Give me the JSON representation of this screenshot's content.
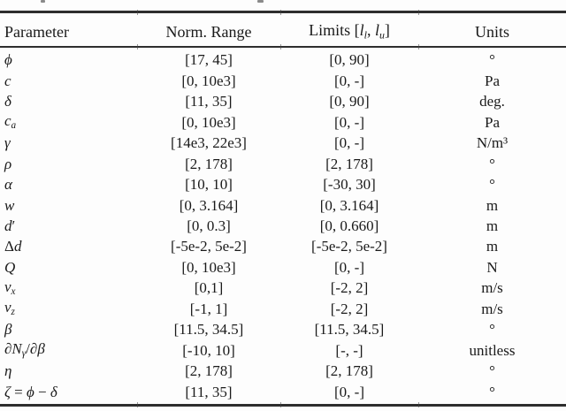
{
  "palette": {
    "background": "#fdfdfd",
    "text": "#1a1a1a",
    "rule": "#2e2e2e"
  },
  "header": {
    "parameter": "Parameter",
    "norm_range": "Norm. Range",
    "limits_segments": [
      {
        "t": "Limits ["
      },
      {
        "t": "l",
        "i": true
      },
      {
        "t": "l",
        "i": true,
        "sub": true
      },
      {
        "t": ", "
      },
      {
        "t": "l",
        "i": true
      },
      {
        "t": "u",
        "i": true,
        "sub": true
      },
      {
        "t": "]"
      }
    ],
    "units": "Units"
  },
  "rows": [
    {
      "param": [
        {
          "t": "ϕ",
          "i": true
        }
      ],
      "norm": "[17, 45]",
      "limits": "[0, 90]",
      "units": "°"
    },
    {
      "param": [
        {
          "t": "c",
          "i": true
        }
      ],
      "norm": "[0, 10e3]",
      "limits": "[0, -]",
      "units": "Pa"
    },
    {
      "param": [
        {
          "t": "δ",
          "i": true
        }
      ],
      "norm": "[11, 35]",
      "limits": "[0, 90]",
      "units": "deg."
    },
    {
      "param": [
        {
          "t": "c",
          "i": true
        },
        {
          "t": "a",
          "i": true,
          "sub": true
        }
      ],
      "norm": "[0, 10e3]",
      "limits": "[0, -]",
      "units": "Pa"
    },
    {
      "param": [
        {
          "t": "γ",
          "i": true
        }
      ],
      "norm": "[14e3, 22e3]",
      "limits": "[0, -]",
      "units": "N/m³"
    },
    {
      "param": [
        {
          "t": "ρ",
          "i": true
        }
      ],
      "norm": "[2, 178]",
      "limits": "[2, 178]",
      "units": "°"
    },
    {
      "param": [
        {
          "t": "α",
          "i": true
        }
      ],
      "norm": "[10, 10]",
      "limits": "[-30, 30]",
      "units": "°"
    },
    {
      "param": [
        {
          "t": "w",
          "i": true
        }
      ],
      "norm": "[0, 3.164]",
      "limits": "[0, 3.164]",
      "units": "m"
    },
    {
      "param": [
        {
          "t": "d",
          "i": true
        },
        {
          "t": "′"
        }
      ],
      "norm": "[0, 0.3]",
      "limits": "[0, 0.660]",
      "units": "m"
    },
    {
      "param": [
        {
          "t": "Δ"
        },
        {
          "t": "d",
          "i": true
        }
      ],
      "norm": "[-5e-2, 5e-2]",
      "limits": "[-5e-2, 5e-2]",
      "units": "m"
    },
    {
      "param": [
        {
          "t": "Q",
          "i": true
        }
      ],
      "norm": "[0, 10e3]",
      "limits": "[0, -]",
      "units": "N"
    },
    {
      "param": [
        {
          "t": "v",
          "i": true
        },
        {
          "t": "x",
          "i": true,
          "sub": true
        }
      ],
      "norm": "[0,1]",
      "limits": "[-2, 2]",
      "units": "m/s"
    },
    {
      "param": [
        {
          "t": "v",
          "i": true
        },
        {
          "t": "z",
          "i": true,
          "sub": true
        }
      ],
      "norm": "[-1, 1]",
      "limits": "[-2, 2]",
      "units": "m/s"
    },
    {
      "param": [
        {
          "t": "β",
          "i": true
        }
      ],
      "norm": "[11.5, 34.5]",
      "limits": "[11.5, 34.5]",
      "units": "°"
    },
    {
      "param": [
        {
          "t": "∂",
          "i": true
        },
        {
          "t": "N",
          "i": true
        },
        {
          "t": "γ",
          "i": true,
          "sub": true
        },
        {
          "t": "/"
        },
        {
          "t": "∂",
          "i": true
        },
        {
          "t": "β",
          "i": true
        }
      ],
      "norm": "[-10, 10]",
      "limits": "[-, -]",
      "units": "unitless"
    },
    {
      "param": [
        {
          "t": "η",
          "i": true
        }
      ],
      "norm": "[2, 178]",
      "limits": "[2, 178]",
      "units": "°"
    },
    {
      "param": [
        {
          "t": "ζ",
          "i": true
        },
        {
          "t": " = "
        },
        {
          "t": "ϕ",
          "i": true
        },
        {
          "t": " − "
        },
        {
          "t": "δ",
          "i": true
        }
      ],
      "norm": "[11, 35]",
      "limits": "[0, -]",
      "units": "°"
    }
  ]
}
